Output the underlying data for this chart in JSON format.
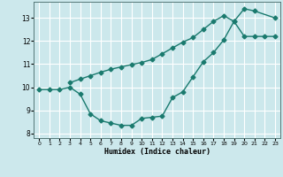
{
  "xlabel": "Humidex (Indice chaleur)",
  "bg_color": "#cce8ec",
  "grid_color": "#ffffff",
  "line_color": "#1a7a6e",
  "line_width": 1.0,
  "marker": "D",
  "marker_size": 2.5,
  "xlim": [
    -0.5,
    23.5
  ],
  "ylim": [
    7.8,
    13.7
  ],
  "xticks": [
    0,
    1,
    2,
    3,
    4,
    5,
    6,
    7,
    8,
    9,
    10,
    11,
    12,
    13,
    14,
    15,
    16,
    17,
    18,
    19,
    20,
    21,
    22,
    23
  ],
  "yticks": [
    8,
    9,
    10,
    11,
    12,
    13
  ],
  "line1_x": [
    0,
    1,
    2,
    3,
    4,
    5,
    6,
    7,
    8,
    9,
    10,
    11,
    12,
    13,
    14,
    15,
    16,
    17,
    18,
    19,
    20,
    21,
    22,
    23
  ],
  "line1_y": [
    9.9,
    9.9,
    9.9,
    10.0,
    9.7,
    8.85,
    8.55,
    8.45,
    8.35,
    8.35,
    8.65,
    8.7,
    8.75,
    9.55,
    9.8,
    10.45,
    11.1,
    11.5,
    12.05,
    12.85,
    12.2,
    12.2,
    12.2,
    12.2
  ],
  "line2_x": [
    3,
    4,
    5,
    6,
    7,
    8,
    9,
    10,
    11,
    12,
    13,
    14,
    15,
    16,
    17,
    18,
    19,
    20,
    21,
    23
  ],
  "line2_y": [
    10.2,
    10.35,
    10.5,
    10.65,
    10.78,
    10.88,
    10.98,
    11.07,
    11.2,
    11.45,
    11.7,
    11.95,
    12.15,
    12.5,
    12.85,
    13.1,
    12.85,
    13.4,
    13.3,
    13.0
  ]
}
